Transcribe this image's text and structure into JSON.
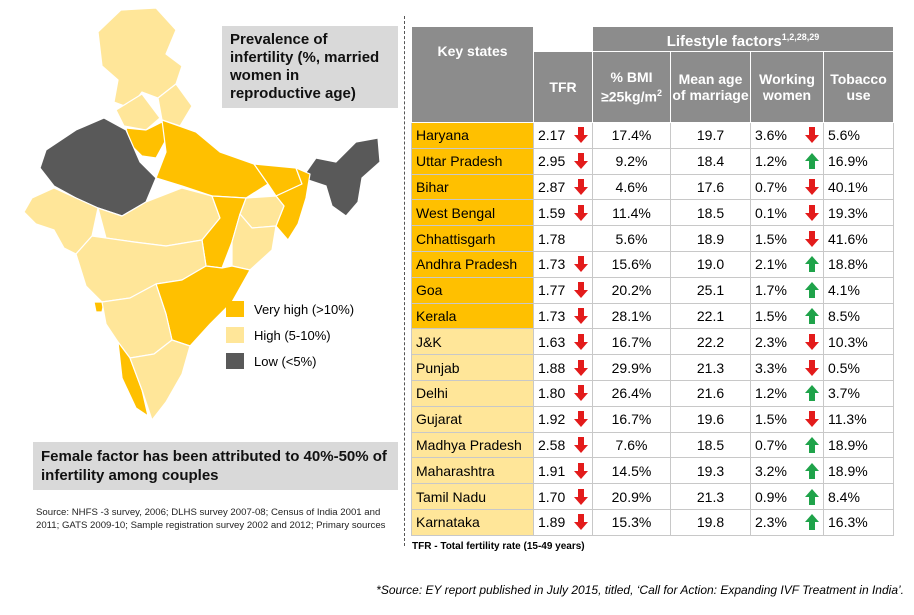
{
  "map": {
    "title": "Prevalence of infertility (%, married women in reproductive age)",
    "legend": [
      {
        "label": "Very high (>10%)",
        "color": "#ffc000"
      },
      {
        "label": "High (5-10%)",
        "color": "#ffe699"
      },
      {
        "label": "Low (<5%)",
        "color": "#595959"
      }
    ]
  },
  "female_factor_note": "Female factor has been attributed to 40%-50% of infertility among couples",
  "source_text": "Source: NHFS -3 survey, 2006; DLHS survey 2007-08; Census of India 2001 and 2011; GATS 2009-10; Sample registration survey 2002 and 2012; Primary sources",
  "table": {
    "header_states": "Key states",
    "header_group": "Lifestyle factors",
    "header_group_refs": "1,2,28,29",
    "col_tfr": "TFR",
    "col_bmi": "% BMI ≥25kg/m",
    "col_bmi_sup": "2",
    "col_age": "Mean age of marriage",
    "col_work": "Working women",
    "col_tob": "Tobacco use",
    "rows": [
      {
        "state": "Haryana",
        "level": "vh",
        "tfr": "2.17",
        "tfr_arrow": "down",
        "bmi": "17.4%",
        "age": "19.7",
        "work": "3.6%",
        "work_arrow": "down",
        "tob": "5.6%"
      },
      {
        "state": "Uttar Pradesh",
        "level": "vh",
        "tfr": "2.95",
        "tfr_arrow": "down",
        "bmi": "9.2%",
        "age": "18.4",
        "work": "1.2%",
        "work_arrow": "up",
        "tob": "16.9%"
      },
      {
        "state": "Bihar",
        "level": "vh",
        "tfr": "2.87",
        "tfr_arrow": "down",
        "bmi": "4.6%",
        "age": "17.6",
        "work": "0.7%",
        "work_arrow": "down",
        "tob": "40.1%"
      },
      {
        "state": "West Bengal",
        "level": "vh",
        "tfr": "1.59",
        "tfr_arrow": "down",
        "bmi": "11.4%",
        "age": "18.5",
        "work": "0.1%",
        "work_arrow": "down",
        "tob": "19.3%"
      },
      {
        "state": "Chhattisgarh",
        "level": "vh",
        "tfr": "1.78",
        "tfr_arrow": "",
        "bmi": "5.6%",
        "age": "18.9",
        "work": "1.5%",
        "work_arrow": "down",
        "tob": "41.6%"
      },
      {
        "state": "Andhra Pradesh",
        "level": "vh",
        "tfr": "1.73",
        "tfr_arrow": "down",
        "bmi": "15.6%",
        "age": "19.0",
        "work": "2.1%",
        "work_arrow": "up",
        "tob": "18.8%"
      },
      {
        "state": "Goa",
        "level": "vh",
        "tfr": "1.77",
        "tfr_arrow": "down",
        "bmi": "20.2%",
        "age": "25.1",
        "work": "1.7%",
        "work_arrow": "up",
        "tob": "4.1%"
      },
      {
        "state": "Kerala",
        "level": "vh",
        "tfr": "1.73",
        "tfr_arrow": "down",
        "bmi": "28.1%",
        "age": "22.1",
        "work": "1.5%",
        "work_arrow": "up",
        "tob": "8.5%"
      },
      {
        "state": "J&K",
        "level": "h",
        "tfr": "1.63",
        "tfr_arrow": "down",
        "bmi": "16.7%",
        "age": "22.2",
        "work": "2.3%",
        "work_arrow": "down",
        "tob": "10.3%"
      },
      {
        "state": "Punjab",
        "level": "h",
        "tfr": "1.88",
        "tfr_arrow": "down",
        "bmi": "29.9%",
        "age": "21.3",
        "work": "3.3%",
        "work_arrow": "down",
        "tob": "0.5%"
      },
      {
        "state": "Delhi",
        "level": "h",
        "tfr": "1.80",
        "tfr_arrow": "down",
        "bmi": "26.4%",
        "age": "21.6",
        "work": "1.2%",
        "work_arrow": "up",
        "tob": "3.7%"
      },
      {
        "state": "Gujarat",
        "level": "h",
        "tfr": "1.92",
        "tfr_arrow": "down",
        "bmi": "16.7%",
        "age": "19.6",
        "work": "1.5%",
        "work_arrow": "down",
        "tob": "11.3%"
      },
      {
        "state": "Madhya Pradesh",
        "level": "h",
        "tfr": "2.58",
        "tfr_arrow": "down",
        "bmi": "7.6%",
        "age": "18.5",
        "work": "0.7%",
        "work_arrow": "up",
        "tob": "18.9%"
      },
      {
        "state": "Maharashtra",
        "level": "h",
        "tfr": "1.91",
        "tfr_arrow": "down",
        "bmi": "14.5%",
        "age": "19.3",
        "work": "3.2%",
        "work_arrow": "up",
        "tob": "18.9%"
      },
      {
        "state": "Tamil Nadu",
        "level": "h",
        "tfr": "1.70",
        "tfr_arrow": "down",
        "bmi": "20.9%",
        "age": "21.3",
        "work": "0.9%",
        "work_arrow": "up",
        "tob": "8.4%"
      },
      {
        "state": "Karnataka",
        "level": "h",
        "tfr": "1.89",
        "tfr_arrow": "down",
        "bmi": "15.3%",
        "age": "19.8",
        "work": "2.3%",
        "work_arrow": "up",
        "tob": "16.3%"
      }
    ]
  },
  "tfr_note": "TFR - Total fertility rate (15-49 years)",
  "footnote": "*Source: EY report published in July 2015, titled, ‘Call for Action: Expanding IVF Treatment in India’.",
  "colors": {
    "very_high": "#ffc000",
    "high": "#ffe699",
    "low": "#595959",
    "header": "#8c8c8c",
    "arrow_down": "#e31b1b",
    "arrow_up": "#1fa34a"
  }
}
